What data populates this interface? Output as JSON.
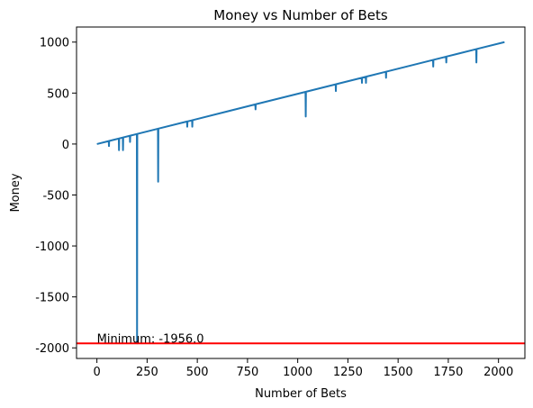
{
  "chart_data": {
    "type": "line",
    "title": "Money vs Number of Bets",
    "xlabel": "Number of Bets",
    "ylabel": "Money",
    "x": [
      0,
      59,
      60,
      61,
      109,
      110,
      111,
      129,
      130,
      131,
      164,
      165,
      166,
      199,
      200,
      201,
      304,
      305,
      306,
      449,
      450,
      451,
      474,
      475,
      476,
      789,
      790,
      791,
      1039,
      1040,
      1041,
      1189,
      1190,
      1191,
      1319,
      1320,
      1321,
      1339,
      1340,
      1341,
      1439,
      1440,
      1441,
      1674,
      1675,
      1676,
      1739,
      1740,
      1741,
      1889,
      1890,
      1891,
      2030
    ],
    "values": [
      0,
      29,
      -20,
      30,
      54,
      -60,
      55,
      64,
      -60,
      65,
      81,
      20,
      82,
      98,
      -1956,
      99,
      150,
      -370,
      151,
      221,
      170,
      222,
      233,
      170,
      234,
      389,
      340,
      390,
      512,
      270,
      513,
      586,
      520,
      587,
      650,
      600,
      651,
      660,
      600,
      661,
      709,
      650,
      710,
      825,
      760,
      826,
      857,
      800,
      858,
      931,
      800,
      932,
      1000
    ],
    "color": "#1f77b4",
    "hline": -1956,
    "hline_color": "#ff0000",
    "annotation": "Minimum: -1956.0",
    "xlim": [
      -101.5,
      2131.5
    ],
    "ylim": [
      -2104,
      1148
    ],
    "xticks": [
      0,
      250,
      500,
      750,
      1000,
      1250,
      1500,
      1750,
      2000
    ],
    "yticks": [
      -2000,
      -1500,
      -1000,
      -500,
      0,
      500,
      1000
    ],
    "grid": false
  }
}
